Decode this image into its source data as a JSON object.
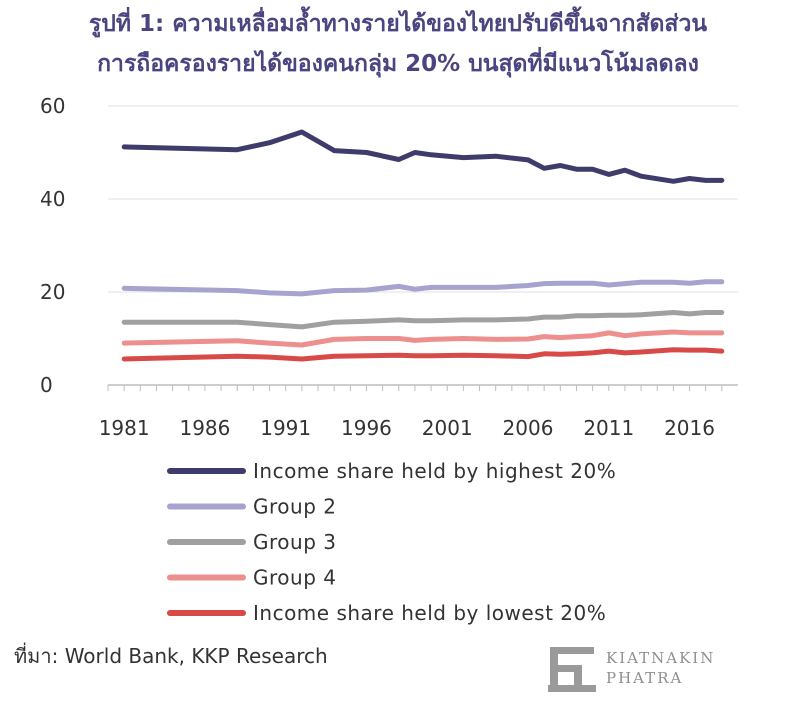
{
  "title_line1": "รูปที่ 1: ความเหลื่อมล้ำทางรายได้ของไทยปรับดีขึ้นจากสัดส่วน",
  "title_line2": "การถือครองรายได้ของคนกลุ่ม 20% บนสุดที่มีแนวโน้มลดลง",
  "source": "ที่มา: World Bank, KKP Research",
  "logo": {
    "line1": "KIATNAKIN",
    "line2": "PHATRA"
  },
  "chart_data": {
    "type": "line",
    "x": [
      1981,
      1988,
      1990,
      1992,
      1994,
      1996,
      1998,
      1999,
      2000,
      2002,
      2004,
      2006,
      2007,
      2008,
      2009,
      2010,
      2011,
      2012,
      2013,
      2015,
      2016,
      2017,
      2018
    ],
    "xticks": [
      1981,
      1986,
      1991,
      1996,
      2001,
      2006,
      2011,
      2016
    ],
    "ylim": [
      0,
      60
    ],
    "yticks": [
      0,
      20,
      40,
      60
    ],
    "grid": true,
    "legend_position": "bottom",
    "series": [
      {
        "name": "Income share held by highest 20%",
        "color": "#3d3c6b",
        "values": [
          51.2,
          50.6,
          52.1,
          54.4,
          50.4,
          50.0,
          48.5,
          50.0,
          49.5,
          48.9,
          49.2,
          48.4,
          46.6,
          47.2,
          46.4,
          46.4,
          45.3,
          46.2,
          44.9,
          43.8,
          44.4,
          44.0,
          44.0
        ]
      },
      {
        "name": "Group 2",
        "color": "#a6a3cf",
        "values": [
          20.8,
          20.3,
          19.8,
          19.6,
          20.3,
          20.4,
          21.2,
          20.6,
          21.0,
          21.0,
          21.0,
          21.4,
          21.8,
          21.9,
          21.9,
          21.9,
          21.5,
          21.8,
          22.1,
          22.1,
          21.9,
          22.2,
          22.2
        ]
      },
      {
        "name": "Group 3",
        "color": "#a0a0a0",
        "values": [
          13.5,
          13.5,
          13.0,
          12.5,
          13.5,
          13.7,
          14.0,
          13.8,
          13.8,
          14.0,
          14.0,
          14.2,
          14.6,
          14.6,
          14.9,
          14.9,
          15.0,
          15.0,
          15.1,
          15.6,
          15.3,
          15.6,
          15.6
        ]
      },
      {
        "name": "Group 4",
        "color": "#ec8f8d",
        "values": [
          9.0,
          9.5,
          9.0,
          8.6,
          9.8,
          10.0,
          10.0,
          9.6,
          9.8,
          10.0,
          9.8,
          9.9,
          10.4,
          10.2,
          10.4,
          10.6,
          11.2,
          10.6,
          11.0,
          11.4,
          11.2,
          11.2,
          11.2
        ]
      },
      {
        "name": "Income share held by lowest 20%",
        "color": "#d84a48",
        "values": [
          5.6,
          6.2,
          6.0,
          5.6,
          6.2,
          6.3,
          6.4,
          6.3,
          6.3,
          6.4,
          6.3,
          6.1,
          6.7,
          6.6,
          6.7,
          6.9,
          7.3,
          6.9,
          7.1,
          7.6,
          7.5,
          7.5,
          7.3
        ]
      }
    ]
  }
}
